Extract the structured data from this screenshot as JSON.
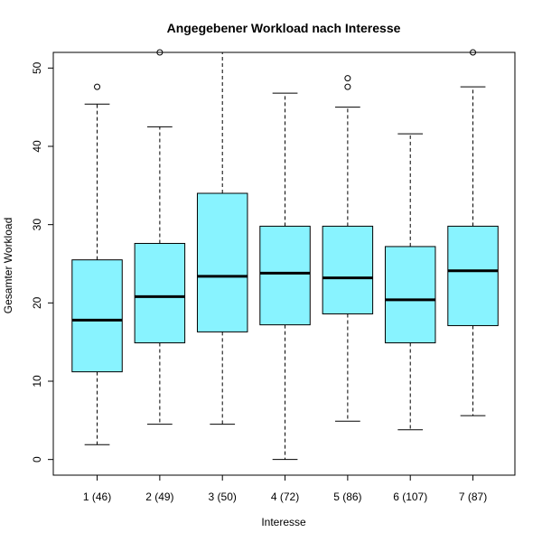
{
  "chart_data": {
    "type": "boxplot",
    "title": "Angegebener Workload nach Interesse",
    "xlabel": "Interesse",
    "ylabel": "Gesamter Workload",
    "ylim": [
      -2,
      52
    ],
    "yticks": [
      0,
      10,
      20,
      30,
      40,
      50
    ],
    "grid": false,
    "legend": "none",
    "colors": {
      "box_fill": "#88F3FF",
      "stroke": "#000000"
    },
    "categories": [
      "1 (46)",
      "2 (49)",
      "3 (50)",
      "4 (72)",
      "5 (86)",
      "6 (107)",
      "7 (87)"
    ],
    "boxes": [
      {
        "whisker_low": 1.9,
        "q1": 11.2,
        "median": 17.8,
        "q3": 25.5,
        "whisker_high": 45.4,
        "outliers": [
          47.6
        ]
      },
      {
        "whisker_low": 4.5,
        "q1": 14.9,
        "median": 20.8,
        "q3": 27.6,
        "whisker_high": 42.5,
        "outliers": [
          52
        ]
      },
      {
        "whisker_low": 4.5,
        "q1": 16.3,
        "median": 23.4,
        "q3": 34.0,
        "whisker_high": 52,
        "outliers": []
      },
      {
        "whisker_low": 0.0,
        "q1": 17.2,
        "median": 23.8,
        "q3": 29.8,
        "whisker_high": 46.8,
        "outliers": []
      },
      {
        "whisker_low": 4.9,
        "q1": 18.6,
        "median": 23.2,
        "q3": 29.8,
        "whisker_high": 45.0,
        "outliers": [
          47.6,
          48.7
        ]
      },
      {
        "whisker_low": 3.8,
        "q1": 14.9,
        "median": 20.4,
        "q3": 27.2,
        "whisker_high": 41.6,
        "outliers": []
      },
      {
        "whisker_low": 5.6,
        "q1": 17.1,
        "median": 24.1,
        "q3": 29.8,
        "whisker_high": 47.6,
        "outliers": [
          52
        ]
      }
    ]
  }
}
